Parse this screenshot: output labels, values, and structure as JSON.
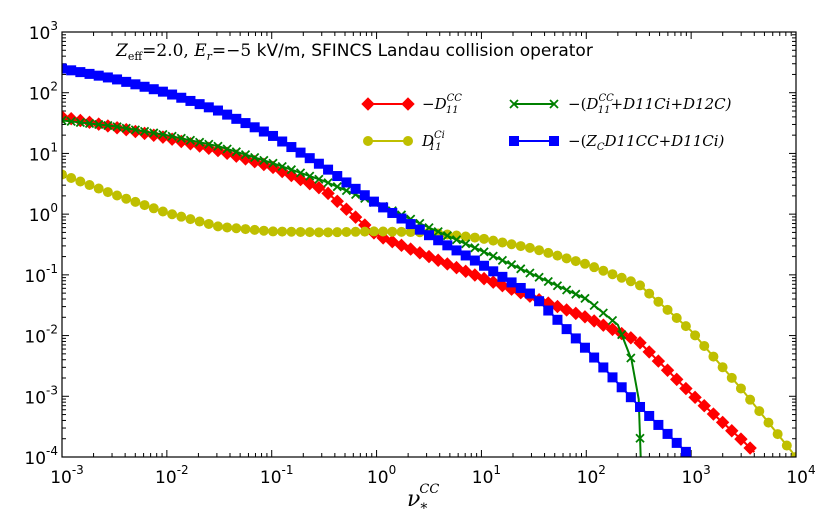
{
  "chart_data": {
    "type": "line",
    "title": "Z_eff=2.0, E_r=−5 kV/m, SFINCS Landau collision operator",
    "title_parts": {
      "zeff_symbol": "Z",
      "zeff_sub": "eff",
      "zeff_value": "=2.0, ",
      "er_symbol": "E",
      "er_sub": "r",
      "er_value": "=−5 ",
      "rest": "kV/m, SFINCS Landau collision operator"
    },
    "xlabel": "ν*CC",
    "xlabel_parts": {
      "symbol": "ν",
      "sub": "*",
      "sup": "CC"
    },
    "ylabel": "",
    "xscale": "log",
    "yscale": "log",
    "xlim": [
      0.001,
      10000
    ],
    "ylim": [
      0.0001,
      1000
    ],
    "xtick_labels": [
      {
        "base": "10",
        "exp": "-3",
        "value": 0.001
      },
      {
        "base": "10",
        "exp": "-2",
        "value": 0.01
      },
      {
        "base": "10",
        "exp": "-1",
        "value": 0.1
      },
      {
        "base": "10",
        "exp": "0",
        "value": 1
      },
      {
        "base": "10",
        "exp": "1",
        "value": 10
      },
      {
        "base": "10",
        "exp": "2",
        "value": 100
      },
      {
        "base": "10",
        "exp": "3",
        "value": 1000
      },
      {
        "base": "10",
        "exp": "4",
        "value": 10000
      }
    ],
    "ytick_labels": [
      {
        "base": "10",
        "exp": "-4",
        "value": 0.0001
      },
      {
        "base": "10",
        "exp": "-3",
        "value": 0.001
      },
      {
        "base": "10",
        "exp": "-2",
        "value": 0.01
      },
      {
        "base": "10",
        "exp": "-1",
        "value": 0.1
      },
      {
        "base": "10",
        "exp": "0",
        "value": 1
      },
      {
        "base": "10",
        "exp": "1",
        "value": 10
      },
      {
        "base": "10",
        "exp": "2",
        "value": 100
      },
      {
        "base": "10",
        "exp": "3",
        "value": 1000
      }
    ],
    "legend_position": "upper-right",
    "series": [
      {
        "name": "−D11CC",
        "legend": {
          "prefix": "−",
          "sym": "D",
          "sub": "11",
          "sup": "CC",
          "suffix": ""
        },
        "color": "#ff0000",
        "marker": "diamond",
        "x": [
          0.001,
          0.003162,
          0.01,
          0.03162,
          0.1,
          0.3162,
          1,
          3.162,
          10,
          31.62,
          100,
          316.2,
          1000,
          3162,
          4000
        ],
        "y": [
          40,
          27,
          18,
          11,
          6,
          2.5,
          0.45,
          0.2,
          0.09,
          0.042,
          0.02,
          0.008,
          0.0011,
          0.00018,
          0.00012
        ]
      },
      {
        "name": "D11Ci",
        "legend": {
          "prefix": "",
          "sym": "D",
          "sub": "11",
          "sup": "Ci",
          "suffix": ""
        },
        "color": "#bfbf00",
        "marker": "circle",
        "x": [
          0.001,
          0.003162,
          0.01,
          0.03162,
          0.1,
          0.3162,
          1,
          3.162,
          10,
          31.62,
          100,
          316.2,
          1000,
          3162,
          10000
        ],
        "y": [
          4.5,
          2.1,
          1.05,
          0.62,
          0.52,
          0.5,
          0.52,
          0.5,
          0.4,
          0.27,
          0.15,
          0.07,
          0.012,
          0.0012,
          0.0001
        ]
      },
      {
        "name": "−(D11CC+D11Ci+D12C)",
        "legend": {
          "prefix": "−(",
          "sym": "D",
          "sub": "11",
          "sup": "CC",
          "suffix": "+D11Ci+D12C)"
        },
        "color": "#008000",
        "marker": "x",
        "x": [
          0.001,
          0.003162,
          0.01,
          0.03162,
          0.1,
          0.3162,
          1,
          3.162,
          10,
          31.62,
          100,
          200,
          270,
          316.2,
          330
        ],
        "y": [
          35,
          28,
          20,
          13,
          7,
          3.5,
          1.5,
          0.6,
          0.25,
          0.1,
          0.04,
          0.015,
          0.004,
          0.0009,
          0.0001
        ]
      },
      {
        "name": "−(ZC D11CC+D11Ci)",
        "legend": {
          "prefix": "−(",
          "sym": "Z",
          "sub": "C",
          "sup": "",
          "suffix": "D11CC+D11Ci)"
        },
        "color": "#0000ff",
        "marker": "square",
        "x": [
          0.001,
          0.003162,
          0.01,
          0.03162,
          0.1,
          0.3162,
          1,
          3.162,
          10,
          31.62,
          100,
          316.2,
          1000
        ],
        "y": [
          250,
          170,
          100,
          50,
          20,
          6,
          1.5,
          0.45,
          0.15,
          0.045,
          0.006,
          0.0007,
          0.0001
        ]
      }
    ]
  }
}
